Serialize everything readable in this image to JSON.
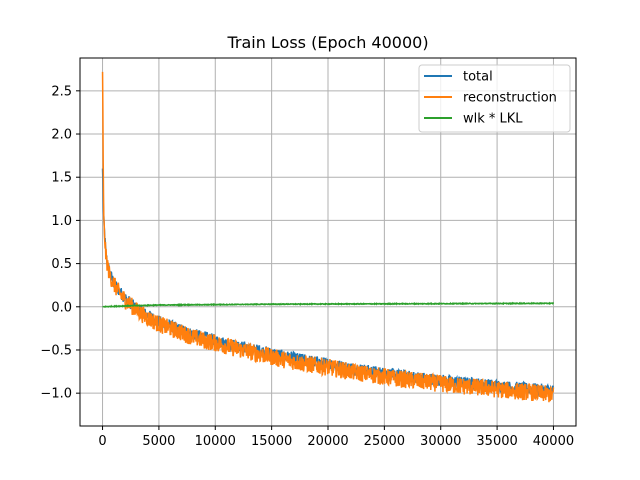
{
  "chart_data": {
    "type": "line",
    "title": "Train Loss (Epoch 40000)",
    "xlabel": "",
    "ylabel": "",
    "xlim": [
      -2000,
      42000
    ],
    "ylim": [
      -1.38,
      2.88
    ],
    "xticks": [
      0,
      5000,
      10000,
      15000,
      20000,
      25000,
      30000,
      35000,
      40000
    ],
    "xtick_labels": [
      "0",
      "5000",
      "10000",
      "15000",
      "20000",
      "25000",
      "30000",
      "35000",
      "40000"
    ],
    "yticks": [
      -1.0,
      -0.5,
      0.0,
      0.5,
      1.0,
      1.5,
      2.0,
      2.5
    ],
    "ytick_labels": [
      "−1.0",
      "−0.5",
      "0.0",
      "0.5",
      "1.0",
      "1.5",
      "2.0",
      "2.5"
    ],
    "grid": true,
    "legend_position": "top-right",
    "series": [
      {
        "name": "total",
        "color": "#1f77b4",
        "x": [
          0,
          100,
          300,
          600,
          1000,
          1500,
          2000,
          3000,
          4000,
          5000,
          6000,
          7000,
          8000,
          9000,
          10000,
          12000,
          14000,
          16000,
          18000,
          20000,
          22000,
          24000,
          26000,
          28000,
          30000,
          32000,
          34000,
          36000,
          38000,
          40000
        ],
        "y": [
          1.6,
          1.0,
          0.6,
          0.4,
          0.28,
          0.18,
          0.1,
          -0.02,
          -0.1,
          -0.17,
          -0.22,
          -0.27,
          -0.32,
          -0.35,
          -0.39,
          -0.46,
          -0.51,
          -0.57,
          -0.62,
          -0.66,
          -0.71,
          -0.75,
          -0.79,
          -0.82,
          -0.85,
          -0.88,
          -0.9,
          -0.93,
          -0.95,
          -0.97
        ],
        "noise": 0.07
      },
      {
        "name": "reconstruction",
        "color": "#ff7f0e",
        "x": [
          0,
          100,
          300,
          600,
          1000,
          1500,
          2000,
          3000,
          4000,
          5000,
          6000,
          7000,
          8000,
          9000,
          10000,
          12000,
          14000,
          16000,
          18000,
          20000,
          22000,
          24000,
          26000,
          28000,
          30000,
          32000,
          34000,
          36000,
          38000,
          40000
        ],
        "y": [
          2.72,
          1.0,
          0.58,
          0.38,
          0.26,
          0.16,
          0.08,
          -0.04,
          -0.13,
          -0.2,
          -0.25,
          -0.3,
          -0.35,
          -0.39,
          -0.42,
          -0.49,
          -0.55,
          -0.61,
          -0.66,
          -0.7,
          -0.75,
          -0.79,
          -0.83,
          -0.86,
          -0.89,
          -0.92,
          -0.94,
          -0.97,
          -0.99,
          -1.02
        ],
        "noise": 0.1
      },
      {
        "name": "wlk * LKL",
        "color": "#2ca02c",
        "x": [
          0,
          2000,
          5000,
          10000,
          15000,
          20000,
          25000,
          30000,
          35000,
          40000
        ],
        "y": [
          0.0,
          0.01,
          0.02,
          0.025,
          0.03,
          0.032,
          0.034,
          0.036,
          0.038,
          0.04
        ],
        "noise": 0.004
      }
    ]
  }
}
